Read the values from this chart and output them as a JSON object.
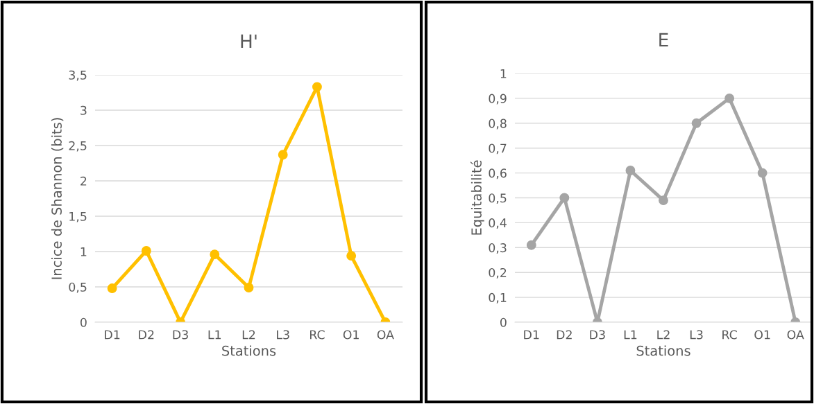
{
  "chart_data": [
    {
      "type": "line",
      "title": "H'",
      "xlabel": "Stations",
      "ylabel": "Incice de Shannon (bits)",
      "categories": [
        "D1",
        "D2",
        "D3",
        "L1",
        "L2",
        "L3",
        "RC",
        "O1",
        "OA"
      ],
      "series": [
        {
          "color": "#ffc000",
          "values": [
            0.48,
            1.01,
            0,
            0.96,
            0.49,
            2.37,
            3.33,
            0.94,
            0
          ]
        }
      ],
      "ylim": [
        0,
        3.5
      ],
      "yticks": [
        0,
        {
          "value": 0.5,
          "label": "0,5"
        },
        1,
        {
          "value": 1.5,
          "label": "1,5"
        },
        2,
        {
          "value": 2.5,
          "label": "2,5"
        },
        3,
        {
          "value": 3.5,
          "label": "3,5"
        }
      ],
      "grid": "y",
      "legend": false,
      "marker": "circle"
    },
    {
      "type": "line",
      "title": "E",
      "xlabel": "Stations",
      "ylabel": "Equitabilité",
      "categories": [
        "D1",
        "D2",
        "D3",
        "L1",
        "L2",
        "L3",
        "RC",
        "O1",
        "OA"
      ],
      "series": [
        {
          "color": "#a5a5a5",
          "values": [
            0.31,
            0.5,
            0,
            0.61,
            0.49,
            0.8,
            0.9,
            0.6,
            0
          ]
        }
      ],
      "ylim": [
        0,
        1
      ],
      "yticks": [
        0,
        {
          "value": 0.1,
          "label": "0,1"
        },
        {
          "value": 0.2,
          "label": "0,2"
        },
        {
          "value": 0.3,
          "label": "0,3"
        },
        {
          "value": 0.4,
          "label": "0,4"
        },
        {
          "value": 0.5,
          "label": "0,5"
        },
        {
          "value": 0.6,
          "label": "0,6"
        },
        {
          "value": 0.7,
          "label": "0,7"
        },
        {
          "value": 0.8,
          "label": "0,8"
        },
        {
          "value": 0.9,
          "label": "0,9"
        },
        1
      ],
      "grid": "y",
      "legend": false,
      "marker": "circle"
    }
  ]
}
